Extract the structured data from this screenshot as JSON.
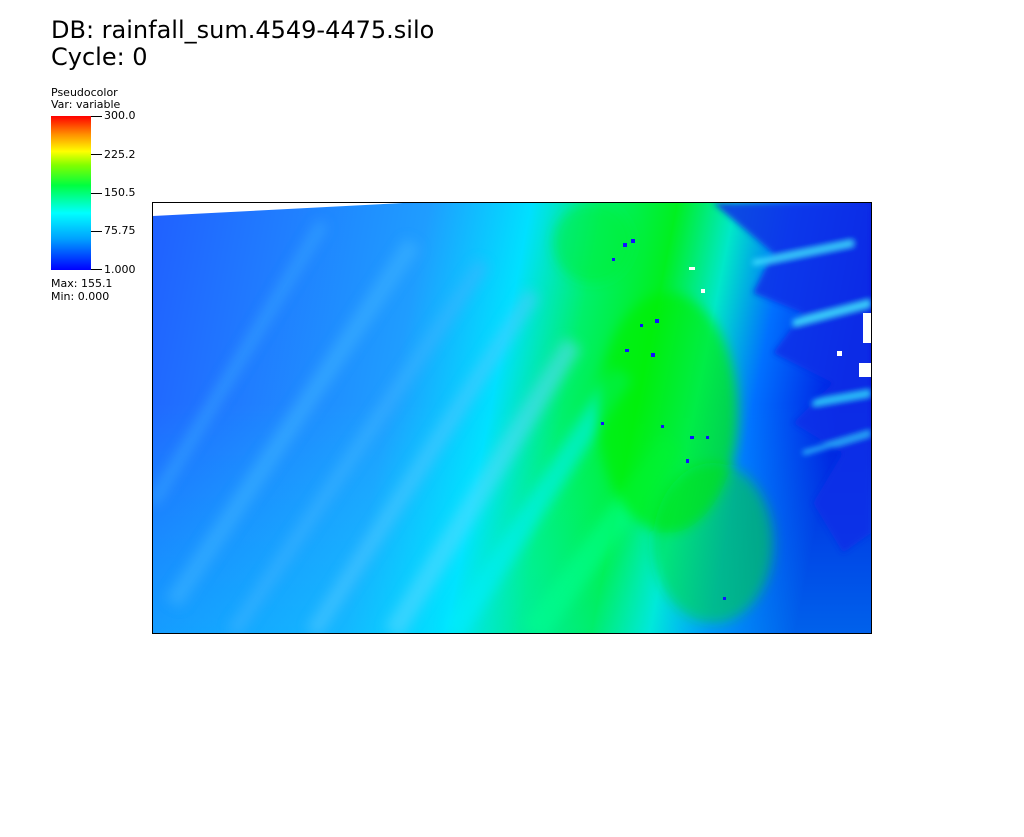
{
  "header": {
    "db_line": "DB: rainfall_sum.4549-4475.silo",
    "cycle_line": "Cycle: 0"
  },
  "legend": {
    "plot_type": "Pseudocolor",
    "var_line": "Var: variable",
    "ticks": [
      "300.0",
      "225.2",
      "150.5",
      "75.75",
      "1.000"
    ],
    "max_line": "Max:  155.1",
    "min_line": "Min:  0.000",
    "colormap": [
      "#0000ff",
      "#00a0ff",
      "#00ffff",
      "#00ff40",
      "#80ff00",
      "#ffff00",
      "#ff9000",
      "#ff0000"
    ]
  },
  "plot": {
    "type": "pseudocolor-field",
    "colors": {
      "low": "#1a5cff",
      "mid": "#00e8ff",
      "high": "#00f000",
      "deep": "#0018e0",
      "missing": "#ffffff"
    }
  }
}
